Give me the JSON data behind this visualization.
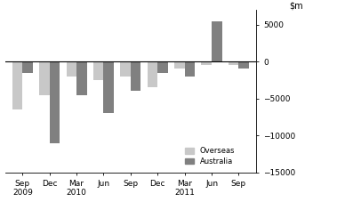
{
  "categories": [
    "Sep\n2009",
    "Dec",
    "Mar\n2010",
    "Jun",
    "Sep",
    "Dec",
    "Mar\n2011",
    "Jun",
    "Sep"
  ],
  "overseas": [
    -6500,
    -4500,
    -2000,
    -2500,
    -2000,
    -3500,
    -1000,
    -500,
    -500
  ],
  "australia": [
    -1500,
    -11000,
    -4500,
    -7000,
    -4000,
    -1500,
    -2000,
    5500,
    -1000
  ],
  "overseas_color": "#c8c8c8",
  "australia_color": "#808080",
  "ylim": [
    -15000,
    7000
  ],
  "yticks": [
    -15000,
    -10000,
    -5000,
    0,
    5000
  ],
  "ytick_labels": [
    "−15000",
    "−10000",
    "−5000",
    "0",
    "5000"
  ],
  "bar_width": 0.38,
  "legend_labels": [
    "Overseas",
    "Australia"
  ],
  "background_color": "#ffffff"
}
